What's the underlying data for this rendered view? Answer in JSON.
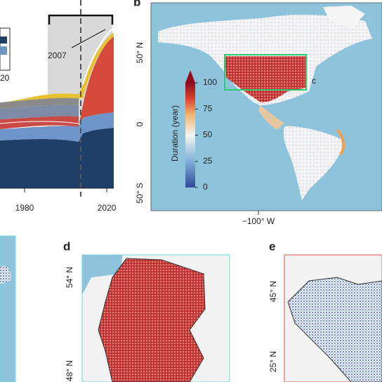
{
  "panel_a": {
    "xticks": [
      1980,
      2020
    ],
    "annotation": "2007",
    "legend_fragment": "20"
  },
  "panel_b": {
    "letter": "b",
    "lat_labels": [
      "50° N",
      "0",
      "50° S"
    ],
    "lon_label": "−100° W",
    "colorbar": {
      "label": "Duration (year)",
      "ticks": [
        0,
        25,
        50,
        75,
        100
      ]
    },
    "inset_label": "c"
  },
  "panel_d": {
    "letter": "d",
    "lat_labels": [
      "54° N",
      "48° N"
    ]
  },
  "panel_e": {
    "letter": "e",
    "lat_labels": [
      "45° N",
      "25° N"
    ]
  }
}
